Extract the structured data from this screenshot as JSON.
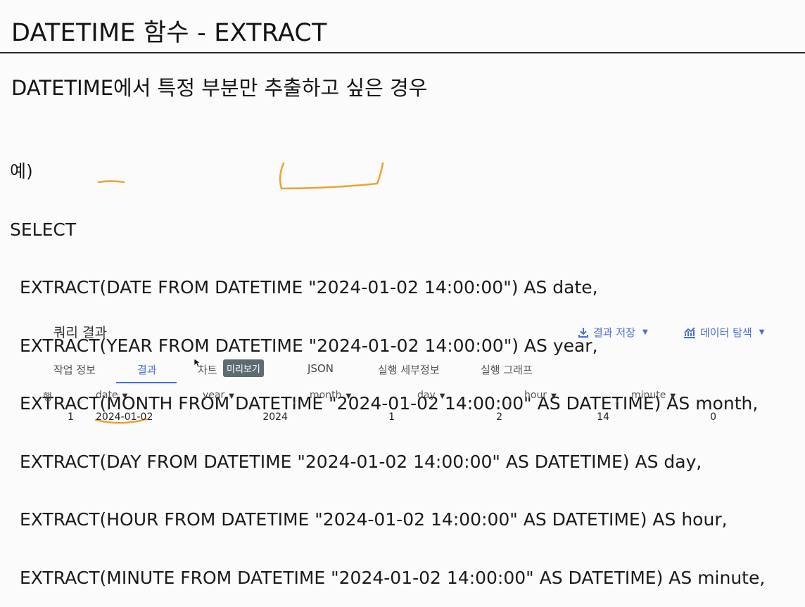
{
  "page": {
    "title": "DATETIME 함수 - EXTRACT",
    "subtitle": "DATETIME에서 특정 부분만 추출하고 싶은 경우"
  },
  "example": {
    "label": "예)",
    "lines": [
      "SELECT",
      "EXTRACT(DATE FROM DATETIME \"2024-01-02 14:00:00\") AS date,",
      "EXTRACT(YEAR FROM DATETIME \"2024-01-02 14:00:00\") AS year,",
      "EXTRACT(MONTH FROM DATETIME \"2024-01-02 14:00:00\" AS DATETIME) AS month,",
      "EXTRACT(DAY FROM DATETIME \"2024-01-02 14:00:00\" AS DATETIME) AS day,",
      "EXTRACT(HOUR FROM DATETIME \"2024-01-02 14:00:00\" AS DATETIME) AS hour,",
      "EXTRACT(MINUTE FROM DATETIME \"2024-01-02 14:00:00\" AS DATETIME) AS minute,"
    ]
  },
  "results": {
    "title": "쿼리 결과",
    "save_label": "결과 저장",
    "explore_label": "데이터 탐색",
    "tabs": [
      "작업 정보",
      "결과",
      "차트",
      "JSON",
      "실행 세부정보",
      "실행 그래프"
    ],
    "active_tab": "결과",
    "preview_badge": "미리보기",
    "columns": [
      "행",
      "date",
      "year",
      "month",
      "day",
      "hour",
      "minute"
    ],
    "rows": [
      [
        "1",
        "2024-01-02",
        "2024",
        "1",
        "2",
        "14",
        "0"
      ]
    ]
  },
  "colors": {
    "accent": "#4a6fd8",
    "annotation": "#f0a032",
    "badge_bg": "#5f6b73"
  }
}
